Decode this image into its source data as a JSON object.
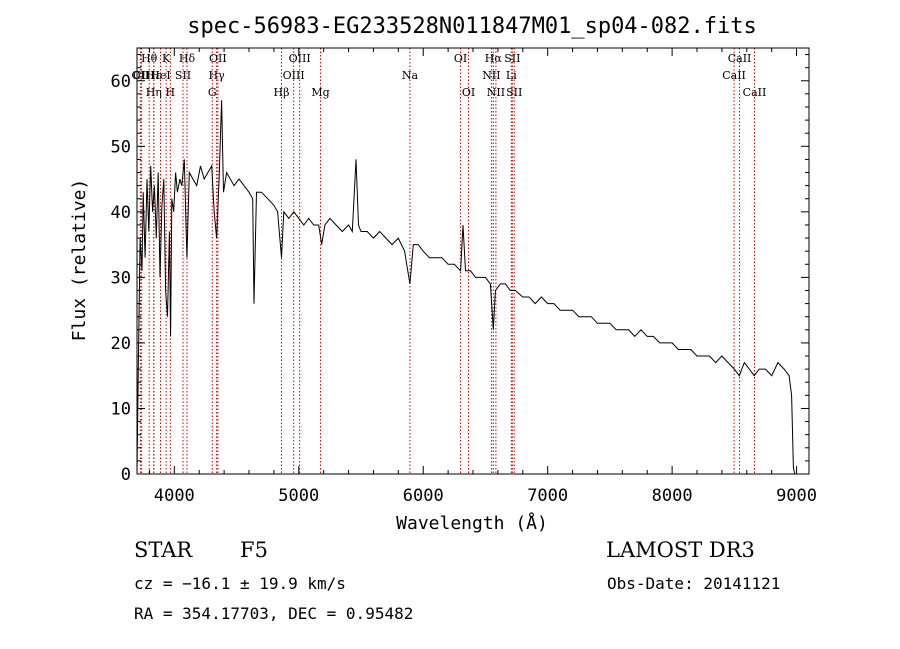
{
  "chart_data": {
    "type": "line",
    "title": "spec-56983-EG233528N011847M01_sp04-082.fits",
    "xlabel": "Wavelength (Å)",
    "ylabel": "Flux (relative)",
    "xlim": [
      3700,
      9100
    ],
    "ylim": [
      0,
      65
    ],
    "xticks": [
      4000,
      5000,
      6000,
      7000,
      8000,
      9000
    ],
    "yticks": [
      0,
      10,
      20,
      30,
      40,
      50,
      60
    ],
    "grid": false,
    "series": [
      {
        "name": "spectrum",
        "points": [
          [
            3700,
            0
          ],
          [
            3710,
            15
          ],
          [
            3725,
            36
          ],
          [
            3740,
            31
          ],
          [
            3750,
            43
          ],
          [
            3765,
            33
          ],
          [
            3780,
            45
          ],
          [
            3795,
            37
          ],
          [
            3810,
            47
          ],
          [
            3825,
            40
          ],
          [
            3840,
            44
          ],
          [
            3855,
            36
          ],
          [
            3870,
            46
          ],
          [
            3885,
            30
          ],
          [
            3900,
            41
          ],
          [
            3915,
            45
          ],
          [
            3930,
            28
          ],
          [
            3945,
            24
          ],
          [
            3960,
            37
          ],
          [
            3970,
            21
          ],
          [
            3980,
            42
          ],
          [
            3995,
            40
          ],
          [
            4010,
            46
          ],
          [
            4025,
            43
          ],
          [
            4045,
            45
          ],
          [
            4060,
            44
          ],
          [
            4080,
            48
          ],
          [
            4101,
            33
          ],
          [
            4120,
            46
          ],
          [
            4150,
            45
          ],
          [
            4180,
            44
          ],
          [
            4210,
            47
          ],
          [
            4240,
            45
          ],
          [
            4270,
            46
          ],
          [
            4300,
            47
          ],
          [
            4320,
            40
          ],
          [
            4340,
            36
          ],
          [
            4360,
            45
          ],
          [
            4380,
            57
          ],
          [
            4395,
            43
          ],
          [
            4420,
            46
          ],
          [
            4450,
            45
          ],
          [
            4480,
            44
          ],
          [
            4520,
            45
          ],
          [
            4560,
            44
          ],
          [
            4600,
            43
          ],
          [
            4630,
            42
          ],
          [
            4640,
            26
          ],
          [
            4660,
            43
          ],
          [
            4700,
            43
          ],
          [
            4750,
            42
          ],
          [
            4800,
            41
          ],
          [
            4830,
            40
          ],
          [
            4861,
            33
          ],
          [
            4880,
            40
          ],
          [
            4920,
            39
          ],
          [
            4960,
            40
          ],
          [
            5000,
            39
          ],
          [
            5040,
            38
          ],
          [
            5080,
            39
          ],
          [
            5120,
            38
          ],
          [
            5160,
            38
          ],
          [
            5184,
            35
          ],
          [
            5210,
            38
          ],
          [
            5250,
            39
          ],
          [
            5300,
            38
          ],
          [
            5350,
            37
          ],
          [
            5400,
            38
          ],
          [
            5430,
            37
          ],
          [
            5460,
            48
          ],
          [
            5480,
            38
          ],
          [
            5500,
            37
          ],
          [
            5550,
            37
          ],
          [
            5600,
            36
          ],
          [
            5650,
            37
          ],
          [
            5700,
            36
          ],
          [
            5750,
            35
          ],
          [
            5800,
            36
          ],
          [
            5850,
            34
          ],
          [
            5893,
            29
          ],
          [
            5920,
            35
          ],
          [
            5960,
            35
          ],
          [
            6000,
            34
          ],
          [
            6050,
            33
          ],
          [
            6100,
            33
          ],
          [
            6150,
            33
          ],
          [
            6200,
            32
          ],
          [
            6250,
            32
          ],
          [
            6300,
            31
          ],
          [
            6320,
            38
          ],
          [
            6340,
            31
          ],
          [
            6380,
            31
          ],
          [
            6420,
            30
          ],
          [
            6460,
            30
          ],
          [
            6500,
            30
          ],
          [
            6540,
            29
          ],
          [
            6563,
            22
          ],
          [
            6580,
            28
          ],
          [
            6620,
            29
          ],
          [
            6660,
            29
          ],
          [
            6700,
            28
          ],
          [
            6740,
            28
          ],
          [
            6800,
            27
          ],
          [
            6850,
            27
          ],
          [
            6900,
            26
          ],
          [
            6950,
            27
          ],
          [
            7000,
            26
          ],
          [
            7050,
            26
          ],
          [
            7100,
            25
          ],
          [
            7150,
            25
          ],
          [
            7200,
            25
          ],
          [
            7250,
            24
          ],
          [
            7300,
            24
          ],
          [
            7350,
            24
          ],
          [
            7400,
            23
          ],
          [
            7450,
            23
          ],
          [
            7500,
            23
          ],
          [
            7550,
            22
          ],
          [
            7600,
            22
          ],
          [
            7650,
            22
          ],
          [
            7700,
            21
          ],
          [
            7750,
            22
          ],
          [
            7800,
            21
          ],
          [
            7850,
            21
          ],
          [
            7900,
            20
          ],
          [
            7950,
            20
          ],
          [
            8000,
            20
          ],
          [
            8050,
            19
          ],
          [
            8100,
            19
          ],
          [
            8150,
            19
          ],
          [
            8200,
            18
          ],
          [
            8250,
            18
          ],
          [
            8300,
            18
          ],
          [
            8350,
            17
          ],
          [
            8400,
            18
          ],
          [
            8450,
            17
          ],
          [
            8500,
            16
          ],
          [
            8540,
            15
          ],
          [
            8580,
            17
          ],
          [
            8620,
            16
          ],
          [
            8660,
            15
          ],
          [
            8700,
            16
          ],
          [
            8750,
            16
          ],
          [
            8800,
            15
          ],
          [
            8850,
            17
          ],
          [
            8900,
            16
          ],
          [
            8940,
            15
          ],
          [
            8960,
            12
          ],
          [
            8975,
            1
          ],
          [
            8985,
            0
          ]
        ]
      }
    ],
    "line_markers": [
      {
        "label": "Hθ",
        "wl": 3798,
        "row": 1
      },
      {
        "label": "OII",
        "wl": 3727,
        "row": 2
      },
      {
        "label": "CII",
        "wl": 3737,
        "row": 2
      },
      {
        "label": "Hε",
        "wl": 3835,
        "row": 2
      },
      {
        "label": "Hη",
        "wl": 3835,
        "row": 3
      },
      {
        "label": "K",
        "wl": 3934,
        "row": 1
      },
      {
        "label": "HeI",
        "wl": 3889,
        "row": 2
      },
      {
        "label": "H",
        "wl": 3968,
        "row": 3
      },
      {
        "label": "SII",
        "wl": 4070,
        "row": 2
      },
      {
        "label": "Hδ",
        "wl": 4102,
        "row": 1
      },
      {
        "label": "OII",
        "wl": 4350,
        "row": 1
      },
      {
        "label": "Hγ",
        "wl": 4340,
        "row": 2
      },
      {
        "label": "G",
        "wl": 4305,
        "row": 3
      },
      {
        "label": "Hβ",
        "wl": 4861,
        "row": 3
      },
      {
        "label": "OIII",
        "wl": 5007,
        "row": 1
      },
      {
        "label": "OIII",
        "wl": 4959,
        "row": 2
      },
      {
        "label": "Mg",
        "wl": 5175,
        "row": 3
      },
      {
        "label": "Na",
        "wl": 5893,
        "row": 2
      },
      {
        "label": "OI",
        "wl": 6300,
        "row": 1
      },
      {
        "label": "OI",
        "wl": 6364,
        "row": 3
      },
      {
        "label": "Hα",
        "wl": 6563,
        "row": 1
      },
      {
        "label": "NII",
        "wl": 6548,
        "row": 2
      },
      {
        "label": "NII",
        "wl": 6584,
        "row": 3
      },
      {
        "label": "SII",
        "wl": 6716,
        "row": 1
      },
      {
        "label": "Li",
        "wl": 6708,
        "row": 2
      },
      {
        "label": "SII",
        "wl": 6731,
        "row": 3
      },
      {
        "label": "CaII",
        "wl": 8542,
        "row": 1
      },
      {
        "label": "CaII",
        "wl": 8498,
        "row": 2
      },
      {
        "label": "CaII",
        "wl": 8662,
        "row": 3
      }
    ]
  },
  "info": {
    "object_class": "STAR",
    "subclass": "F5",
    "survey": "LAMOST DR3",
    "cz": "cz = −16.1 ± 19.9 km/s",
    "obs_date": "Obs-Date: 20141121",
    "coords": "RA = 354.17703, DEC =   0.95482"
  },
  "colors": {
    "spectrum": "#000000",
    "marker": "#cc0000",
    "axis": "#000000"
  }
}
